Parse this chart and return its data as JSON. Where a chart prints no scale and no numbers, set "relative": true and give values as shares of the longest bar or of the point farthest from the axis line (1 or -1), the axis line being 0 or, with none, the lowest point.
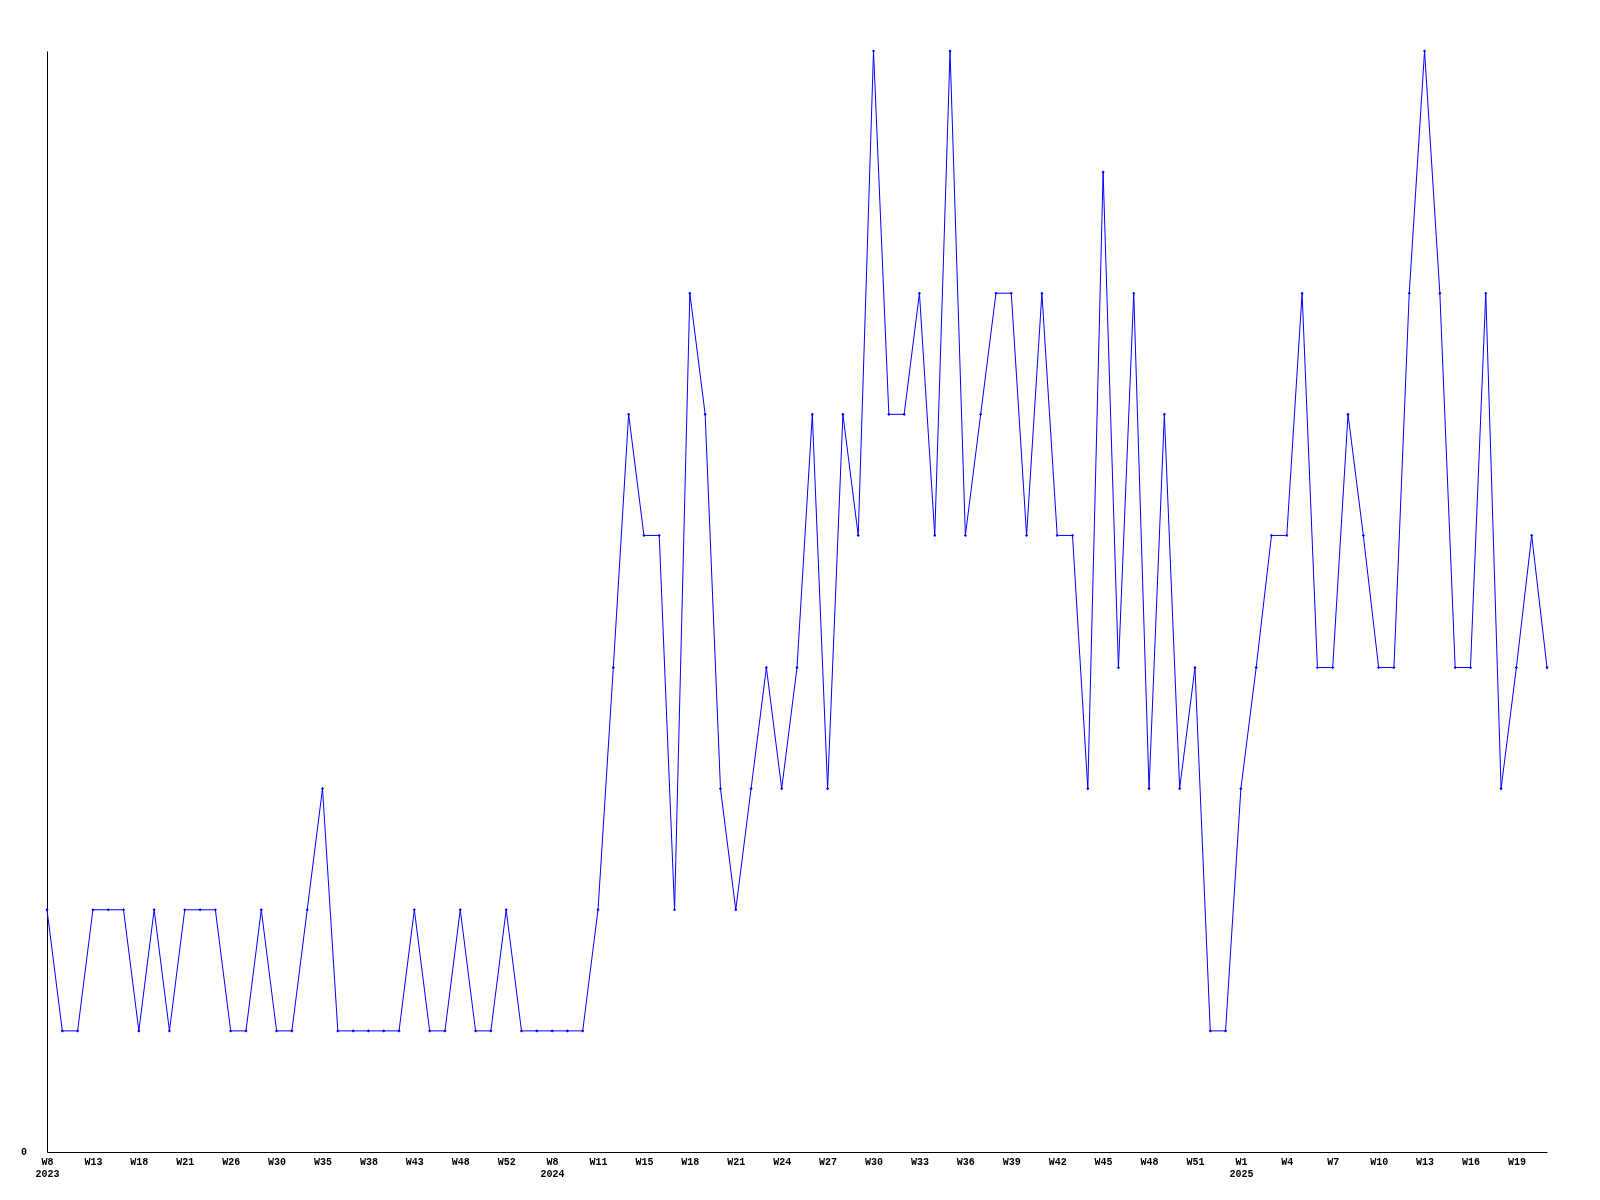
{
  "chart_data": {
    "type": "line",
    "relative": true,
    "marker": "diamond",
    "grid": false,
    "categories": [
      "W8 2023",
      null,
      null,
      "W13",
      null,
      null,
      "W18",
      null,
      null,
      "W21",
      null,
      null,
      "W26",
      null,
      null,
      "W30",
      null,
      null,
      "W35",
      null,
      null,
      "W38",
      null,
      null,
      "W43",
      null,
      null,
      "W48",
      null,
      null,
      "W52",
      null,
      null,
      "W8 2024",
      null,
      null,
      "W11",
      null,
      null,
      "W15",
      null,
      null,
      "W18",
      null,
      null,
      "W21",
      null,
      null,
      "W24",
      null,
      null,
      "W27",
      null,
      null,
      "W30",
      null,
      null,
      "W33",
      null,
      null,
      "W36",
      null,
      null,
      "W39",
      null,
      null,
      "W42",
      null,
      null,
      "W45",
      null,
      null,
      "W48",
      null,
      null,
      "W51",
      null,
      null,
      "W1 2025",
      null,
      null,
      "W4",
      null,
      null,
      "W7",
      null,
      null,
      "W10",
      null,
      null,
      "W13",
      null,
      null,
      "W16",
      null,
      null,
      "W19",
      null,
      null
    ],
    "series": [
      {
        "color": "#0000ff",
        "values": [
          0.22,
          0.11,
          0.11,
          0.22,
          0.22,
          0.22,
          0.11,
          0.22,
          0.11,
          0.22,
          0.22,
          0.22,
          0.11,
          0.11,
          0.22,
          0.11,
          0.11,
          0.22,
          0.33,
          0.11,
          0.11,
          0.11,
          0.11,
          0.11,
          0.22,
          0.11,
          0.11,
          0.22,
          0.11,
          0.11,
          0.22,
          0.11,
          0.11,
          0.11,
          0.11,
          0.11,
          0.22,
          0.44,
          0.67,
          0.56,
          0.56,
          0.22,
          0.78,
          0.67,
          0.33,
          0.22,
          0.33,
          0.44,
          0.33,
          0.44,
          0.67,
          0.33,
          0.67,
          0.56,
          1,
          0.67,
          0.67,
          0.78,
          0.56,
          1,
          0.56,
          0.67,
          0.78,
          0.78,
          0.56,
          0.78,
          0.56,
          0.56,
          0.33,
          0.89,
          0.44,
          0.78,
          0.33,
          0.67,
          0.33,
          0.44,
          0.11,
          0.11,
          0.33,
          0.44,
          0.56,
          0.56,
          0.78,
          0.44,
          0.44,
          0.67,
          0.56,
          0.44,
          0.44,
          0.78,
          1,
          0.78,
          0.44,
          0.44,
          0.78,
          0.33,
          0.44,
          0.56,
          0.44
        ]
      }
    ],
    "annotations": [
      "0"
    ]
  }
}
